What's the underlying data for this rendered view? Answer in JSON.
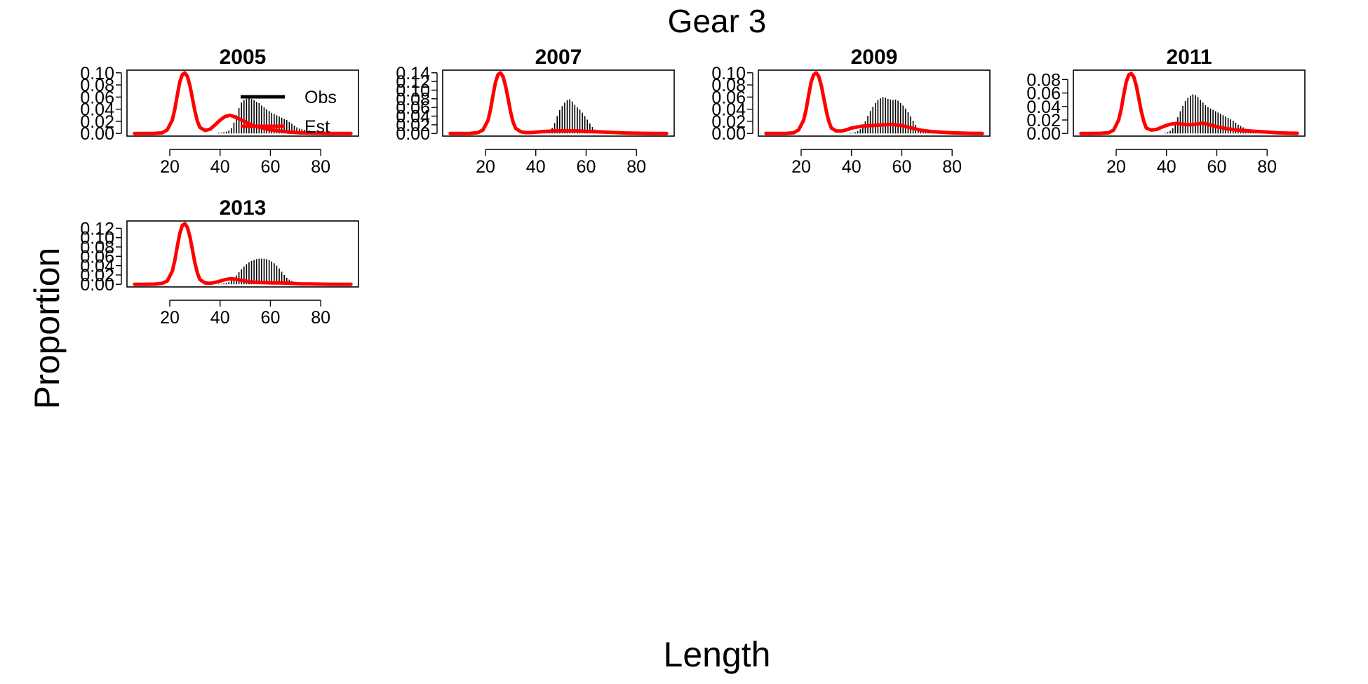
{
  "figure": {
    "title": "Gear 3",
    "xlabel": "Length",
    "ylabel": "Proportion"
  },
  "colors": {
    "observed": "#000000",
    "estimated": "#ff0000"
  },
  "legend": {
    "entries": [
      "Obs",
      "Est"
    ],
    "panel": "2005",
    "placement": "top-right"
  },
  "chart_data": [
    {
      "type": "bar",
      "title": "2005",
      "xlim": [
        3,
        95
      ],
      "ylim": [
        0,
        0.1
      ],
      "xticks": [
        20,
        40,
        60,
        80
      ],
      "yticks": [
        0.0,
        0.02,
        0.04,
        0.06,
        0.08,
        0.1
      ],
      "ytick_labels": [
        "0.00",
        "0.02",
        "0.04",
        "0.06",
        "0.08",
        "0.10"
      ],
      "series": [
        {
          "name": "Obs",
          "kind": "bars",
          "bin_start": 3,
          "bin_width": 1,
          "values": [
            0,
            0,
            0,
            0,
            0,
            0,
            0,
            0,
            0,
            0,
            0,
            0,
            0,
            0,
            0,
            0,
            0,
            0,
            0,
            0,
            0,
            0,
            0,
            0,
            0,
            0,
            0,
            0,
            0,
            0,
            0,
            0,
            0,
            0,
            0,
            0,
            0.001,
            0.001,
            0.002,
            0.003,
            0.005,
            0.009,
            0.018,
            0.03,
            0.042,
            0.051,
            0.055,
            0.057,
            0.058,
            0.057,
            0.055,
            0.052,
            0.05,
            0.046,
            0.043,
            0.04,
            0.037,
            0.034,
            0.032,
            0.03,
            0.028,
            0.026,
            0.024,
            0.022,
            0.019,
            0.016,
            0.013,
            0.01,
            0.008,
            0.007,
            0.006,
            0.005,
            0.005,
            0.004,
            0.004,
            0.003,
            0.003,
            0.002,
            0.002,
            0.002,
            0.002,
            0.001,
            0.001,
            0.001,
            0.001,
            0.001,
            0,
            0,
            0,
            0,
            0,
            0
          ]
        },
        {
          "name": "Est",
          "kind": "line",
          "x": [
            6,
            10,
            14,
            17,
            19,
            21,
            22,
            23,
            24,
            25,
            26,
            27,
            28,
            29,
            30,
            31,
            32,
            34,
            36,
            38,
            40,
            42,
            44,
            46,
            48,
            50,
            52,
            54,
            56,
            58,
            60,
            64,
            68,
            72,
            76,
            80,
            84,
            88,
            92
          ],
          "values": [
            0,
            0,
            0.0002,
            0.001,
            0.006,
            0.022,
            0.04,
            0.063,
            0.085,
            0.097,
            0.1,
            0.094,
            0.079,
            0.058,
            0.037,
            0.02,
            0.01,
            0.005,
            0.007,
            0.014,
            0.022,
            0.028,
            0.03,
            0.027,
            0.023,
            0.019,
            0.015,
            0.012,
            0.01,
            0.008,
            0.006,
            0.004,
            0.002,
            0.001,
            0.0006,
            0.0003,
            0.0001,
            5e-05,
            0
          ]
        }
      ]
    },
    {
      "type": "bar",
      "title": "2007",
      "xlim": [
        3,
        95
      ],
      "ylim": [
        0,
        0.14
      ],
      "xticks": [
        20,
        40,
        60,
        80
      ],
      "yticks": [
        0.0,
        0.02,
        0.04,
        0.06,
        0.08,
        0.1,
        0.12,
        0.14
      ],
      "ytick_labels": [
        "0.00",
        "0.02",
        "0.04",
        "0.06",
        "0.08",
        "0.10",
        "0.12",
        "0.14"
      ],
      "series": [
        {
          "name": "Obs",
          "kind": "bars",
          "bin_start": 3,
          "bin_width": 1,
          "values": [
            0,
            0,
            0,
            0,
            0,
            0,
            0,
            0,
            0,
            0,
            0,
            0,
            0,
            0,
            0,
            0,
            0,
            0,
            0,
            0,
            0,
            0,
            0,
            0,
            0,
            0,
            0,
            0,
            0,
            0,
            0,
            0,
            0,
            0,
            0,
            0,
            0,
            0,
            0.001,
            0.001,
            0.002,
            0.004,
            0.007,
            0.013,
            0.024,
            0.04,
            0.054,
            0.063,
            0.071,
            0.077,
            0.079,
            0.074,
            0.066,
            0.06,
            0.055,
            0.048,
            0.04,
            0.032,
            0.023,
            0.015,
            0.009,
            0.006,
            0.004,
            0.003,
            0.002,
            0.002,
            0.001,
            0.001,
            0.001,
            0.001,
            0.0005,
            0.0005,
            0,
            0,
            0,
            0,
            0,
            0,
            0,
            0,
            0,
            0,
            0,
            0,
            0,
            0,
            0,
            0,
            0,
            0,
            0,
            0
          ]
        },
        {
          "name": "Est",
          "kind": "line",
          "x": [
            6,
            10,
            14,
            17,
            19,
            21,
            22,
            23,
            24,
            25,
            26,
            27,
            28,
            29,
            30,
            31,
            32,
            34,
            36,
            38,
            40,
            44,
            48,
            52,
            56,
            60,
            64,
            68,
            72,
            76,
            80,
            84,
            88,
            92
          ],
          "values": [
            0,
            0,
            0.0003,
            0.002,
            0.008,
            0.03,
            0.055,
            0.088,
            0.118,
            0.136,
            0.14,
            0.131,
            0.109,
            0.08,
            0.05,
            0.026,
            0.012,
            0.004,
            0.002,
            0.002,
            0.003,
            0.005,
            0.006,
            0.006,
            0.006,
            0.005,
            0.004,
            0.003,
            0.002,
            0.001,
            0.0006,
            0.0003,
            0.0001,
            0
          ]
        }
      ]
    },
    {
      "type": "bar",
      "title": "2009",
      "xlim": [
        3,
        95
      ],
      "ylim": [
        0,
        0.1
      ],
      "xticks": [
        20,
        40,
        60,
        80
      ],
      "yticks": [
        0.0,
        0.02,
        0.04,
        0.06,
        0.08,
        0.1
      ],
      "ytick_labels": [
        "0.00",
        "0.02",
        "0.04",
        "0.06",
        "0.08",
        "0.10"
      ],
      "series": [
        {
          "name": "Obs",
          "kind": "bars",
          "bin_start": 3,
          "bin_width": 1,
          "values": [
            0,
            0,
            0,
            0,
            0,
            0,
            0,
            0,
            0,
            0,
            0,
            0,
            0,
            0,
            0,
            0,
            0,
            0,
            0,
            0,
            0,
            0,
            0,
            0,
            0,
            0,
            0,
            0,
            0,
            0,
            0,
            0,
            0,
            0,
            0,
            0,
            0.001,
            0.001,
            0.002,
            0.004,
            0.007,
            0.012,
            0.02,
            0.029,
            0.037,
            0.044,
            0.05,
            0.055,
            0.058,
            0.06,
            0.059,
            0.057,
            0.056,
            0.055,
            0.056,
            0.054,
            0.05,
            0.046,
            0.041,
            0.035,
            0.028,
            0.021,
            0.014,
            0.009,
            0.006,
            0.004,
            0.003,
            0.002,
            0.002,
            0.002,
            0.001,
            0.001,
            0.001,
            0.001,
            0.001,
            0.0005,
            0.0005,
            0,
            0,
            0,
            0,
            0,
            0,
            0,
            0,
            0,
            0,
            0,
            0,
            0,
            0,
            0
          ]
        },
        {
          "name": "Est",
          "kind": "line",
          "x": [
            6,
            10,
            14,
            17,
            19,
            21,
            22,
            23,
            24,
            25,
            26,
            27,
            28,
            29,
            30,
            31,
            32,
            34,
            36,
            38,
            40,
            44,
            48,
            52,
            56,
            60,
            64,
            68,
            72,
            76,
            80,
            84,
            88,
            92
          ],
          "values": [
            0,
            0,
            0.0002,
            0.001,
            0.006,
            0.022,
            0.04,
            0.063,
            0.085,
            0.097,
            0.1,
            0.094,
            0.079,
            0.058,
            0.037,
            0.02,
            0.009,
            0.004,
            0.004,
            0.006,
            0.009,
            0.012,
            0.013,
            0.014,
            0.015,
            0.013,
            0.009,
            0.005,
            0.003,
            0.002,
            0.001,
            0.0005,
            0.0002,
            0
          ]
        }
      ]
    },
    {
      "type": "bar",
      "title": "2011",
      "xlim": [
        3,
        95
      ],
      "ylim": [
        0,
        0.09
      ],
      "xticks": [
        20,
        40,
        60,
        80
      ],
      "yticks": [
        0.0,
        0.02,
        0.04,
        0.06,
        0.08
      ],
      "ytick_labels": [
        "0.00",
        "0.02",
        "0.04",
        "0.06",
        "0.08"
      ],
      "series": [
        {
          "name": "Obs",
          "kind": "bars",
          "bin_start": 3,
          "bin_width": 1,
          "values": [
            0,
            0,
            0,
            0,
            0,
            0,
            0,
            0,
            0,
            0,
            0,
            0,
            0,
            0,
            0,
            0,
            0,
            0,
            0,
            0,
            0,
            0,
            0,
            0,
            0,
            0,
            0,
            0,
            0,
            0,
            0,
            0,
            0,
            0,
            0,
            0,
            0.001,
            0.002,
            0.004,
            0.008,
            0.015,
            0.024,
            0.033,
            0.041,
            0.048,
            0.053,
            0.056,
            0.058,
            0.057,
            0.054,
            0.05,
            0.046,
            0.042,
            0.039,
            0.037,
            0.035,
            0.033,
            0.031,
            0.029,
            0.027,
            0.025,
            0.023,
            0.021,
            0.019,
            0.016,
            0.013,
            0.011,
            0.009,
            0.007,
            0.006,
            0.005,
            0.004,
            0.003,
            0.003,
            0.002,
            0.002,
            0.002,
            0.001,
            0.001,
            0.001,
            0.001,
            0.001,
            0.001,
            0.0005,
            0,
            0,
            0,
            0,
            0,
            0,
            0,
            0
          ]
        },
        {
          "name": "Est",
          "kind": "line",
          "x": [
            6,
            10,
            14,
            17,
            19,
            21,
            22,
            23,
            24,
            25,
            26,
            27,
            28,
            29,
            30,
            31,
            32,
            34,
            36,
            38,
            40,
            42,
            44,
            46,
            48,
            50,
            52,
            54,
            56,
            58,
            60,
            64,
            68,
            72,
            76,
            80,
            84,
            88,
            92
          ],
          "values": [
            0,
            0,
            0.0002,
            0.001,
            0.005,
            0.02,
            0.036,
            0.057,
            0.076,
            0.087,
            0.089,
            0.084,
            0.071,
            0.052,
            0.033,
            0.018,
            0.008,
            0.005,
            0.006,
            0.009,
            0.012,
            0.014,
            0.015,
            0.014,
            0.013,
            0.013,
            0.014,
            0.015,
            0.014,
            0.012,
            0.01,
            0.007,
            0.005,
            0.004,
            0.003,
            0.002,
            0.001,
            0.0005,
            0.0002
          ]
        }
      ]
    },
    {
      "type": "bar",
      "title": "2013",
      "xlim": [
        3,
        95
      ],
      "ylim": [
        0,
        0.13
      ],
      "xticks": [
        20,
        40,
        60,
        80
      ],
      "yticks": [
        0.0,
        0.02,
        0.04,
        0.06,
        0.08,
        0.1,
        0.12
      ],
      "ytick_labels": [
        "0.00",
        "0.02",
        "0.04",
        "0.06",
        "0.08",
        "0.10",
        "0.12"
      ],
      "series": [
        {
          "name": "Obs",
          "kind": "bars",
          "bin_start": 3,
          "bin_width": 1,
          "values": [
            0,
            0,
            0,
            0,
            0,
            0,
            0,
            0,
            0,
            0,
            0,
            0,
            0,
            0,
            0,
            0,
            0,
            0,
            0,
            0,
            0,
            0,
            0,
            0,
            0,
            0,
            0,
            0,
            0,
            0,
            0,
            0,
            0,
            0,
            0,
            0,
            0.001,
            0.001,
            0.002,
            0.003,
            0.005,
            0.008,
            0.013,
            0.019,
            0.026,
            0.032,
            0.038,
            0.043,
            0.047,
            0.05,
            0.052,
            0.054,
            0.055,
            0.055,
            0.055,
            0.054,
            0.052,
            0.049,
            0.045,
            0.04,
            0.034,
            0.027,
            0.02,
            0.014,
            0.01,
            0.007,
            0.005,
            0.004,
            0.003,
            0.002,
            0.002,
            0.001,
            0.001,
            0.001,
            0.001,
            0.001,
            0.001,
            0.0005,
            0.0005,
            0,
            0,
            0,
            0,
            0,
            0,
            0,
            0,
            0,
            0,
            0,
            0,
            0
          ]
        },
        {
          "name": "Est",
          "kind": "line",
          "x": [
            6,
            10,
            14,
            17,
            19,
            21,
            22,
            23,
            24,
            25,
            26,
            27,
            28,
            29,
            30,
            31,
            32,
            34,
            36,
            38,
            40,
            42,
            44,
            46,
            48,
            50,
            52,
            56,
            60,
            64,
            68,
            72,
            76,
            80,
            84,
            88,
            92
          ],
          "values": [
            0,
            0,
            0.0003,
            0.002,
            0.007,
            0.028,
            0.051,
            0.081,
            0.109,
            0.126,
            0.13,
            0.122,
            0.102,
            0.074,
            0.046,
            0.024,
            0.01,
            0.003,
            0.002,
            0.004,
            0.007,
            0.01,
            0.012,
            0.011,
            0.009,
            0.007,
            0.005,
            0.004,
            0.003,
            0.003,
            0.002,
            0.001,
            0.0006,
            0.0003,
            0.0001,
            5e-05,
            0
          ]
        }
      ]
    }
  ]
}
